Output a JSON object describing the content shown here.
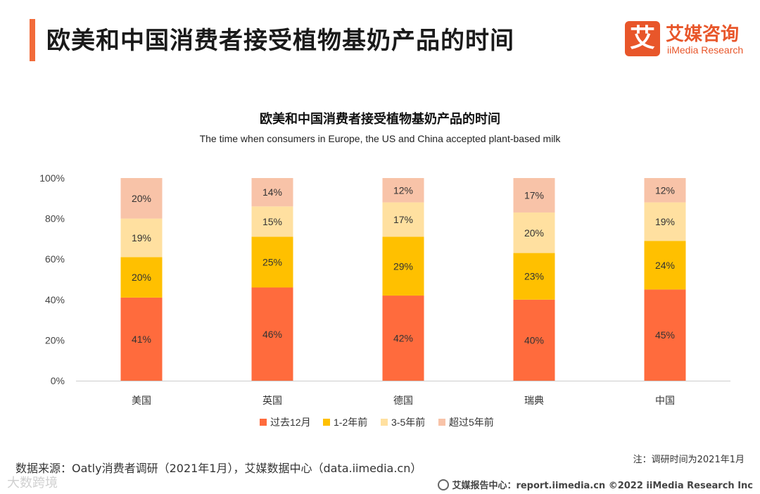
{
  "header": {
    "title": "欧美和中国消费者接受植物基奶产品的时间",
    "logo_mark": "艾",
    "logo_cn": "艾媒咨询",
    "logo_en": "iiMedia Research"
  },
  "chart_data": {
    "type": "bar",
    "stacked": true,
    "title": "欧美和中国消费者接受植物基奶产品的时间",
    "subtitle": "The time when consumers in Europe, the US and China accepted plant-based milk",
    "categories": [
      "美国",
      "英国",
      "德国",
      "瑞典",
      "中国"
    ],
    "series": [
      {
        "name": "过去12月",
        "color": "#FF6B3D",
        "values": [
          41,
          46,
          42,
          40,
          45
        ]
      },
      {
        "name": "1-2年前",
        "color": "#FFC000",
        "values": [
          20,
          25,
          29,
          23,
          24
        ]
      },
      {
        "name": "3-5年前",
        "color": "#FFE0A0",
        "values": [
          19,
          15,
          17,
          20,
          19
        ]
      },
      {
        "name": "超过5年前",
        "color": "#F8C3A8",
        "values": [
          20,
          14,
          12,
          17,
          12
        ]
      }
    ],
    "yticks": [
      "0%",
      "20%",
      "40%",
      "60%",
      "80%",
      "100%"
    ],
    "ylim": [
      0,
      100
    ],
    "legend_position": "bottom"
  },
  "footer": {
    "source": "数据来源：Oatly消费者调研（2021年1月），艾媒数据中心（data.iimedia.cn）",
    "note": "注：调研时间为2021年1月",
    "watermark": "大数跨境",
    "right": "艾媒报告中心：report.iimedia.cn   ©2022  iiMedia Research  Inc"
  }
}
